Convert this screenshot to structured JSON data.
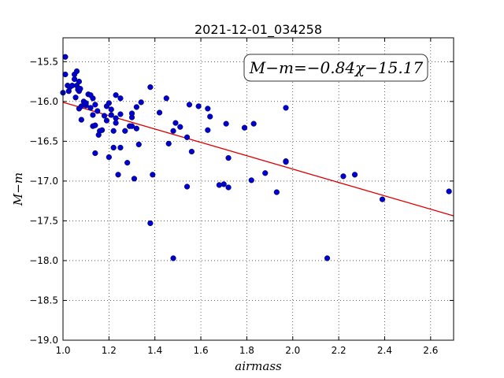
{
  "chart_data": {
    "type": "scatter",
    "title": "2021-12-01_034258",
    "xlabel": "airmass",
    "ylabel": "M−m",
    "annotation": "M−m=−0.84χ−15.17",
    "xlim": [
      1.0,
      2.7
    ],
    "ylim": [
      -19.0,
      -15.2
    ],
    "x_ticks": [
      1.0,
      1.2,
      1.4,
      1.6,
      1.8,
      2.0,
      2.2,
      2.4,
      2.6
    ],
    "x_tick_labels": [
      "1.0",
      "1.2",
      "1.4",
      "1.6",
      "1.8",
      "2.0",
      "2.2",
      "2.4",
      "2.6"
    ],
    "y_ticks": [
      -15.5,
      -16.0,
      -16.5,
      -17.0,
      -17.5,
      -18.0,
      -18.5,
      -19.0
    ],
    "y_tick_labels": [
      "−15.5",
      "−16.0",
      "−16.5",
      "−17.0",
      "−17.5",
      "−18.0",
      "−18.5",
      "−19.0"
    ],
    "grid": true,
    "fit_line": {
      "slope": -0.84,
      "intercept": -15.17,
      "color": "#dd0000"
    },
    "point_color": "#0000cc",
    "points": [
      [
        1.0,
        -15.89
      ],
      [
        1.01,
        -15.44
      ],
      [
        1.01,
        -15.66
      ],
      [
        1.02,
        -15.8
      ],
      [
        1.025,
        -15.87
      ],
      [
        1.03,
        -15.82
      ],
      [
        1.04,
        -15.8
      ],
      [
        1.05,
        -15.66
      ],
      [
        1.05,
        -15.72
      ],
      [
        1.055,
        -15.95
      ],
      [
        1.06,
        -15.62
      ],
      [
        1.06,
        -15.8
      ],
      [
        1.065,
        -15.85
      ],
      [
        1.07,
        -15.75
      ],
      [
        1.07,
        -16.09
      ],
      [
        1.07,
        -15.87
      ],
      [
        1.075,
        -15.84
      ],
      [
        1.08,
        -16.06
      ],
      [
        1.08,
        -16.23
      ],
      [
        1.09,
        -16.0
      ],
      [
        1.1,
        -16.05
      ],
      [
        1.1,
        -16.02
      ],
      [
        1.11,
        -15.91
      ],
      [
        1.12,
        -16.08
      ],
      [
        1.12,
        -15.92
      ],
      [
        1.13,
        -15.96
      ],
      [
        1.13,
        -16.31
      ],
      [
        1.13,
        -16.17
      ],
      [
        1.14,
        -16.04
      ],
      [
        1.14,
        -16.3
      ],
      [
        1.14,
        -16.65
      ],
      [
        1.15,
        -16.12
      ],
      [
        1.16,
        -16.37
      ],
      [
        1.155,
        -16.42
      ],
      [
        1.17,
        -16.36
      ],
      [
        1.18,
        -16.18
      ],
      [
        1.19,
        -16.06
      ],
      [
        1.19,
        -16.24
      ],
      [
        1.2,
        -16.02
      ],
      [
        1.2,
        -16.7
      ],
      [
        1.21,
        -16.17
      ],
      [
        1.21,
        -16.1
      ],
      [
        1.22,
        -16.37
      ],
      [
        1.22,
        -16.58
      ],
      [
        1.23,
        -15.92
      ],
      [
        1.23,
        -16.21
      ],
      [
        1.23,
        -16.27
      ],
      [
        1.24,
        -16.92
      ],
      [
        1.25,
        -16.58
      ],
      [
        1.25,
        -15.96
      ],
      [
        1.25,
        -16.16
      ],
      [
        1.27,
        -16.37
      ],
      [
        1.28,
        -16.77
      ],
      [
        1.29,
        -16.31
      ],
      [
        1.3,
        -16.31
      ],
      [
        1.3,
        -16.2
      ],
      [
        1.3,
        -16.15
      ],
      [
        1.31,
        -16.97
      ],
      [
        1.32,
        -16.34
      ],
      [
        1.32,
        -16.07
      ],
      [
        1.33,
        -16.54
      ],
      [
        1.34,
        -16.01
      ],
      [
        1.38,
        -17.53
      ],
      [
        1.38,
        -15.82
      ],
      [
        1.39,
        -16.92
      ],
      [
        1.42,
        -16.14
      ],
      [
        1.45,
        -15.96
      ],
      [
        1.46,
        -16.53
      ],
      [
        1.48,
        -17.97
      ],
      [
        1.48,
        -16.37
      ],
      [
        1.49,
        -16.27
      ],
      [
        1.51,
        -16.32
      ],
      [
        1.54,
        -16.45
      ],
      [
        1.54,
        -17.07
      ],
      [
        1.55,
        -16.04
      ],
      [
        1.56,
        -16.63
      ],
      [
        1.59,
        -16.06
      ],
      [
        1.63,
        -16.36
      ],
      [
        1.63,
        -16.09
      ],
      [
        1.64,
        -16.19
      ],
      [
        1.68,
        -17.05
      ],
      [
        1.7,
        -17.04
      ],
      [
        1.71,
        -16.28
      ],
      [
        1.72,
        -16.71
      ],
      [
        1.72,
        -17.08
      ],
      [
        1.79,
        -16.33
      ],
      [
        1.82,
        -16.99
      ],
      [
        1.83,
        -16.28
      ],
      [
        1.88,
        -16.9
      ],
      [
        1.93,
        -17.14
      ],
      [
        1.97,
        -16.75
      ],
      [
        1.97,
        -16.76
      ],
      [
        1.97,
        -16.08
      ],
      [
        2.15,
        -17.97
      ],
      [
        2.22,
        -16.94
      ],
      [
        2.27,
        -16.92
      ],
      [
        2.39,
        -17.23
      ],
      [
        2.68,
        -17.13
      ]
    ]
  }
}
